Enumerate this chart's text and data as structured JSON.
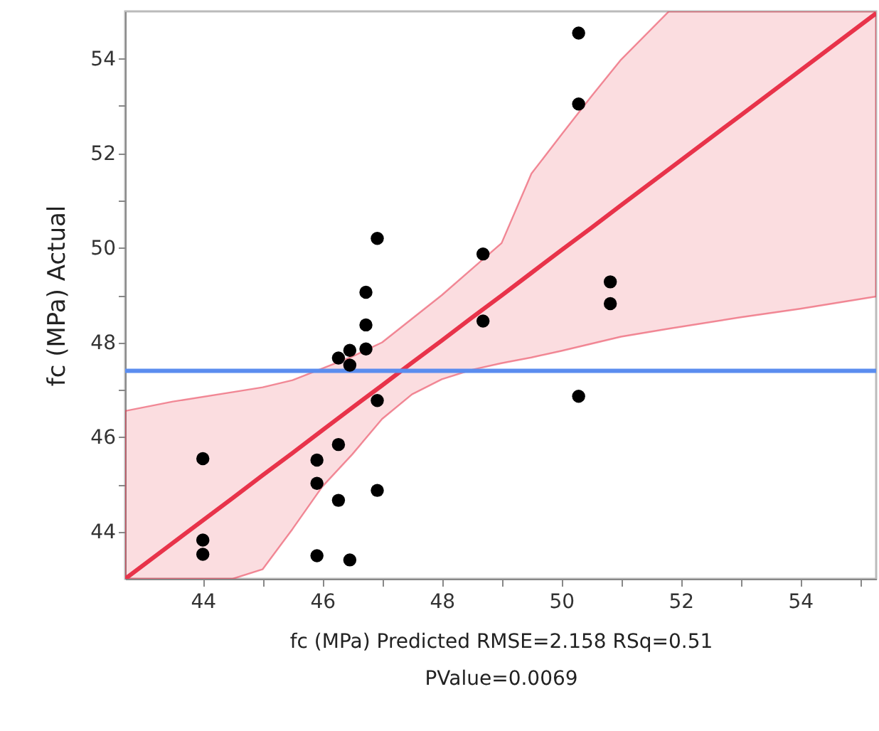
{
  "chart_data": {
    "type": "scatter",
    "xlabel": "fc (MPa) Predicted RMSE=2.158 RSq=0.51",
    "ylabel": "fc (MPa) Actual",
    "annotations": [
      "PValue=0.0069"
    ],
    "xlim": [
      42.7,
      55.27
    ],
    "ylim": [
      43,
      55
    ],
    "xticks": [
      44,
      {
        "value": 45,
        "label": null
      },
      46,
      {
        "value": 47,
        "label": null
      },
      48,
      {
        "value": 49,
        "label": null
      },
      50,
      {
        "value": 51,
        "label": null
      },
      52,
      {
        "value": 53,
        "label": null
      },
      54,
      {
        "value": 55,
        "label": null
      }
    ],
    "yticks": [
      44,
      {
        "value": 45,
        "label": null
      },
      46,
      {
        "value": 47,
        "label": null
      },
      48,
      {
        "value": 49,
        "label": null
      },
      50,
      {
        "value": 51,
        "label": null
      },
      52,
      {
        "value": 53,
        "label": null
      },
      54
    ],
    "grid": false,
    "series": [
      {
        "type": "scatter",
        "marker": "circle",
        "color": "#000000",
        "x": [
          44.0,
          44.0,
          44.0,
          45.91,
          45.91,
          45.91,
          46.27,
          46.27,
          46.27,
          46.46,
          46.46,
          46.46,
          46.73,
          46.73,
          46.73,
          46.92,
          46.92,
          46.92,
          48.69,
          48.69,
          50.29,
          50.29,
          50.29,
          50.82,
          50.82
        ],
        "values": [
          45.54,
          43.82,
          43.52,
          45.51,
          45.02,
          43.49,
          45.84,
          44.66,
          47.67,
          47.83,
          47.52,
          43.4,
          47.86,
          48.37,
          49.06,
          50.2,
          46.77,
          44.87,
          49.87,
          48.45,
          54.54,
          53.04,
          46.86,
          49.28,
          48.82
        ]
      },
      {
        "type": "line",
        "marker": "none",
        "color": "#e8334a",
        "x": [
          42.7,
          43.5,
          44.5,
          45.0,
          45.5,
          46.0,
          46.5,
          47.0,
          47.5,
          48.0,
          48.5,
          49.0,
          49.5,
          50.0,
          50.5,
          51.0,
          51.8,
          53.0,
          54.0,
          55.27
        ],
        "values": [
          43.0,
          43.76,
          44.71,
          45.19,
          45.66,
          46.14,
          46.62,
          47.09,
          47.57,
          48.04,
          48.52,
          48.99,
          49.47,
          49.95,
          50.42,
          50.9,
          51.66,
          52.8,
          53.75,
          54.96
        ],
        "lower": [
          43,
          43,
          43,
          43.2,
          44.05,
          44.95,
          45.63,
          46.38,
          46.9,
          47.22,
          47.42,
          47.56,
          47.68,
          47.82,
          47.97,
          48.12,
          48.29,
          48.53,
          48.71,
          48.97
        ],
        "upper": [
          46.55,
          46.75,
          46.95,
          47.05,
          47.2,
          47.45,
          47.7,
          48.0,
          48.5,
          49.0,
          49.55,
          50.1,
          51.57,
          52.39,
          53.2,
          53.98,
          55,
          55,
          55,
          55
        ]
      }
    ],
    "ref_lines": [
      {
        "axis": "y",
        "value": 47.4,
        "color": "#5b8def"
      }
    ]
  }
}
